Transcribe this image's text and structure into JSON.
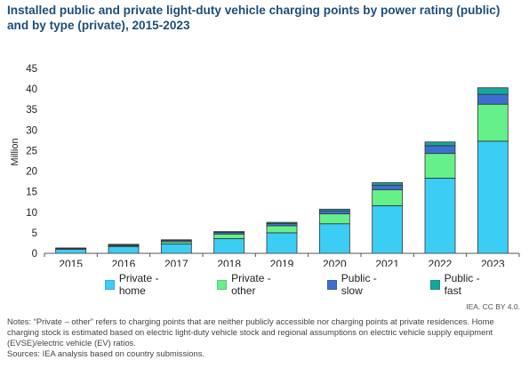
{
  "title": "Installed public and private light-duty vehicle charging points by power rating (public) and by type (private), 2015-2023",
  "credit": "IEA. CC BY 4.0.",
  "notes": "Notes: “Private – other” refers to charging points that are neither publicly accessible nor charging points at private residences. Home charging stock is estimated based on electric light-duty vehicle stock and regional assumptions on electric vehicle supply equipment (EVSE)/electric vehicle (EV) ratios.",
  "sources": "Sources: IEA analysis based on country submissions.",
  "chart_data": {
    "type": "bar",
    "stacked": true,
    "title": "Installed public and private light-duty vehicle charging points by power rating (public) and by type (private), 2015-2023",
    "xlabel": "",
    "ylabel": "Million",
    "ylim": [
      0,
      45
    ],
    "yticks": [
      0,
      5,
      10,
      15,
      20,
      25,
      30,
      35,
      40,
      45
    ],
    "grid": false,
    "legend_position": "bottom",
    "categories": [
      "2015",
      "2016",
      "2017",
      "2018",
      "2019",
      "2020",
      "2021",
      "2022",
      "2023"
    ],
    "series": [
      {
        "name": "Private - home",
        "color": "#3ccdf5",
        "values": [
          1.0,
          1.6,
          2.3,
          3.6,
          5.0,
          7.2,
          11.6,
          18.3,
          27.3
        ]
      },
      {
        "name": "Private - other",
        "color": "#66f08a",
        "values": [
          0.15,
          0.25,
          0.5,
          1.1,
          1.7,
          2.4,
          3.9,
          6.0,
          9.0
        ]
      },
      {
        "name": "Public - slow",
        "color": "#3e6fd0",
        "values": [
          0.1,
          0.25,
          0.35,
          0.4,
          0.55,
          0.75,
          1.1,
          1.9,
          2.4
        ]
      },
      {
        "name": "Public - fast",
        "color": "#17a69b",
        "values": [
          0.05,
          0.1,
          0.15,
          0.2,
          0.3,
          0.4,
          0.6,
          0.9,
          1.6
        ]
      }
    ]
  }
}
